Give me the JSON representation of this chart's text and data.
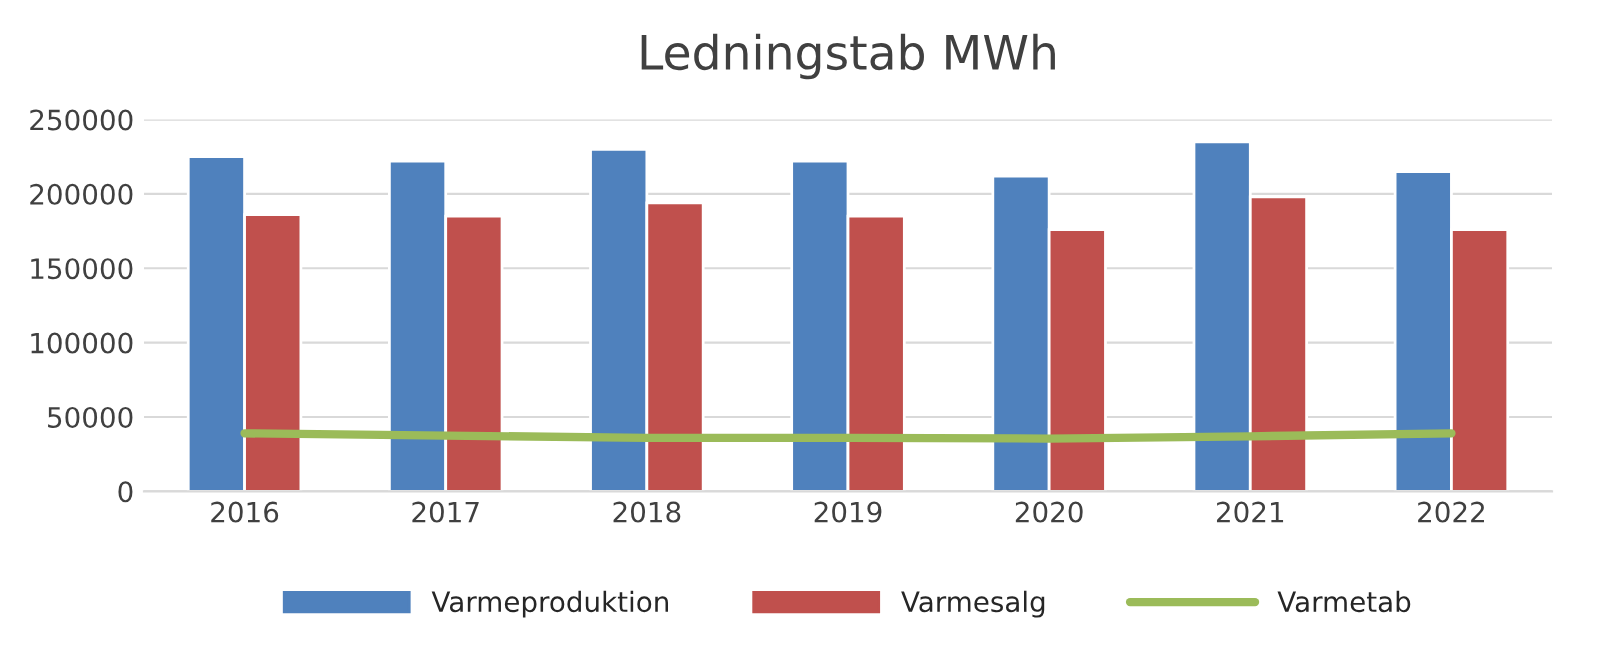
{
  "chart_data": {
    "type": "bar",
    "title": "Ledningstab MWh",
    "categories": [
      "2016",
      "2017",
      "2018",
      "2019",
      "2020",
      "2021",
      "2022"
    ],
    "series": [
      {
        "name": "Varmeproduktion",
        "color": "#4f81bd",
        "values": [
          225000,
          222000,
          230000,
          222000,
          212000,
          235000,
          215000
        ]
      },
      {
        "name": "Varmesalg",
        "color": "#c0504d",
        "values": [
          186000,
          185000,
          194000,
          185000,
          176000,
          198000,
          176000
        ]
      },
      {
        "name": "Varmetab",
        "type": "line",
        "color": "#9bbb59",
        "values": [
          39000,
          37500,
          36000,
          36000,
          35500,
          37000,
          39000
        ]
      }
    ],
    "ylim": [
      0,
      250000
    ],
    "yticks": [
      0,
      50000,
      100000,
      150000,
      200000,
      250000
    ],
    "grid": "y",
    "legend": "bottom"
  }
}
